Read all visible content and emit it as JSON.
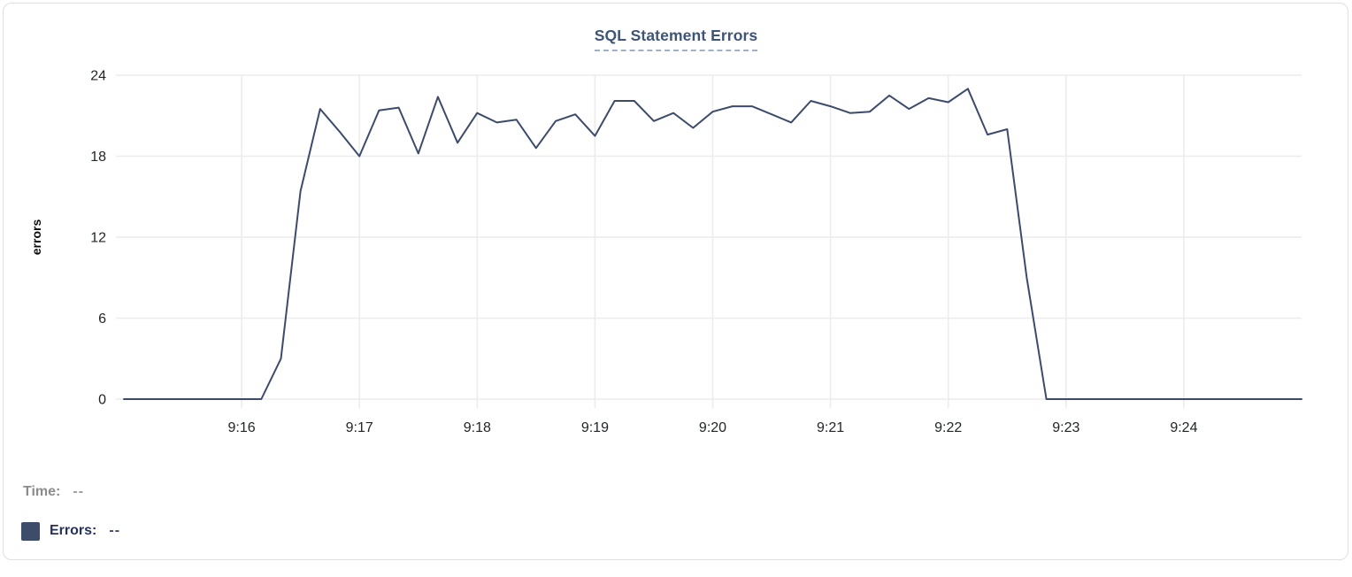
{
  "chart_data": {
    "type": "line",
    "title": "SQL Statement Errors",
    "xlabel": "",
    "ylabel": "errors",
    "ylim": [
      0,
      24
    ],
    "y_ticks": [
      0,
      6,
      12,
      18,
      24
    ],
    "x_domain": [
      "9:15:00",
      "9:25:00"
    ],
    "x_span_seconds": 600,
    "x_tick_labels": [
      "9:16",
      "9:17",
      "9:18",
      "9:19",
      "9:20",
      "9:21",
      "9:22",
      "9:23",
      "9:24"
    ],
    "x_tick_interval_seconds": 60,
    "sample_interval_seconds": 10,
    "grid": true,
    "legend_position": "none",
    "series": [
      {
        "name": "Errors",
        "color": "#3c4b6c",
        "start_time": "9:15:00",
        "values": [
          0,
          0,
          0,
          0,
          0,
          0,
          0,
          0,
          3,
          15.4,
          21.5,
          19.8,
          18,
          21.4,
          21.6,
          18.2,
          22.4,
          19,
          21.2,
          20.5,
          20.7,
          18.6,
          20.6,
          21.1,
          19.5,
          22.1,
          22.1,
          20.6,
          21.2,
          20.1,
          21.3,
          21.7,
          21.7,
          21.1,
          20.5,
          22.1,
          21.7,
          21.2,
          21.3,
          22.5,
          21.5,
          22.3,
          22,
          23,
          19.6,
          20,
          9,
          0,
          0,
          0,
          0,
          0,
          0,
          0,
          0,
          0,
          0,
          0,
          0,
          0,
          0
        ]
      }
    ]
  },
  "tooltip": {
    "time_label": "Time:",
    "time_value": "--",
    "errors_label": "Errors:",
    "errors_value": "--"
  },
  "colors": {
    "line": "#3c4b6c",
    "grid": "#ececec",
    "axis_text": "#212529",
    "ylabel_text": "#0b0b0b",
    "title": "#3e5578",
    "title_underline": "#9fb0c8",
    "time_label": "#8c8c8c",
    "time_value": "#9c9c9c",
    "errors_label": "#26325a",
    "errors_value": "#3a4a6b",
    "swatch": "#3d4c68",
    "card_border": "#dfdfdf"
  }
}
